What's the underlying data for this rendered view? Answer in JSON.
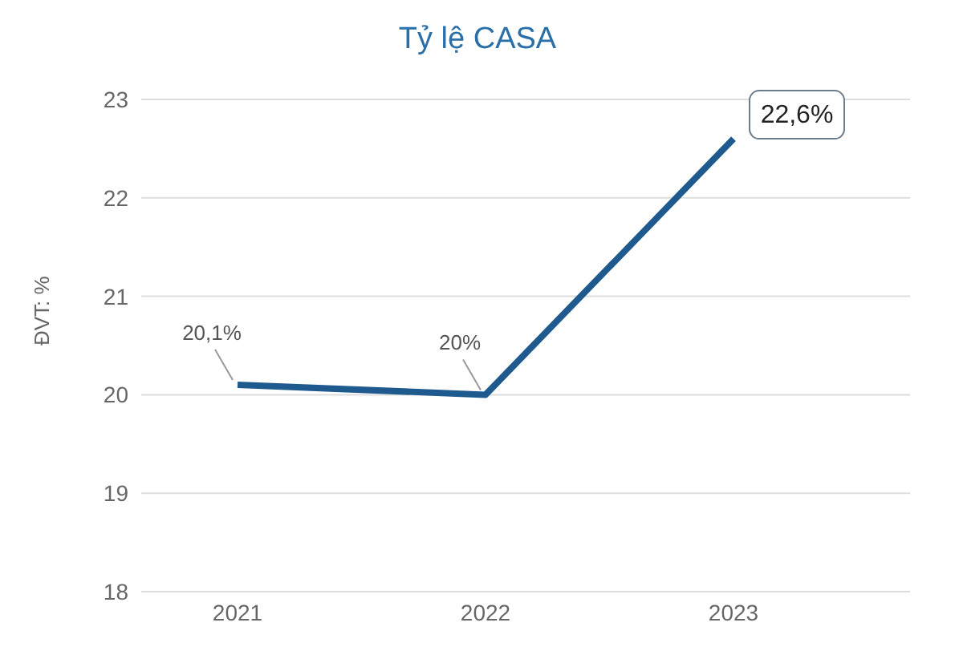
{
  "chart_data": {
    "type": "line",
    "title": "Tỷ lệ CASA",
    "ylabel": "ĐVT: %",
    "categories": [
      "2021",
      "2022",
      "2023"
    ],
    "series": [
      {
        "color": "#1f5a8f",
        "values": [
          20.1,
          20.0,
          22.6
        ],
        "value_labels": [
          "20,1%",
          "20%",
          "22,6%"
        ]
      }
    ],
    "ylim": [
      18,
      23
    ],
    "yticks": [
      18,
      19,
      20,
      21,
      22,
      23
    ],
    "grid": "y",
    "marker": "none",
    "line_style": "solid"
  }
}
